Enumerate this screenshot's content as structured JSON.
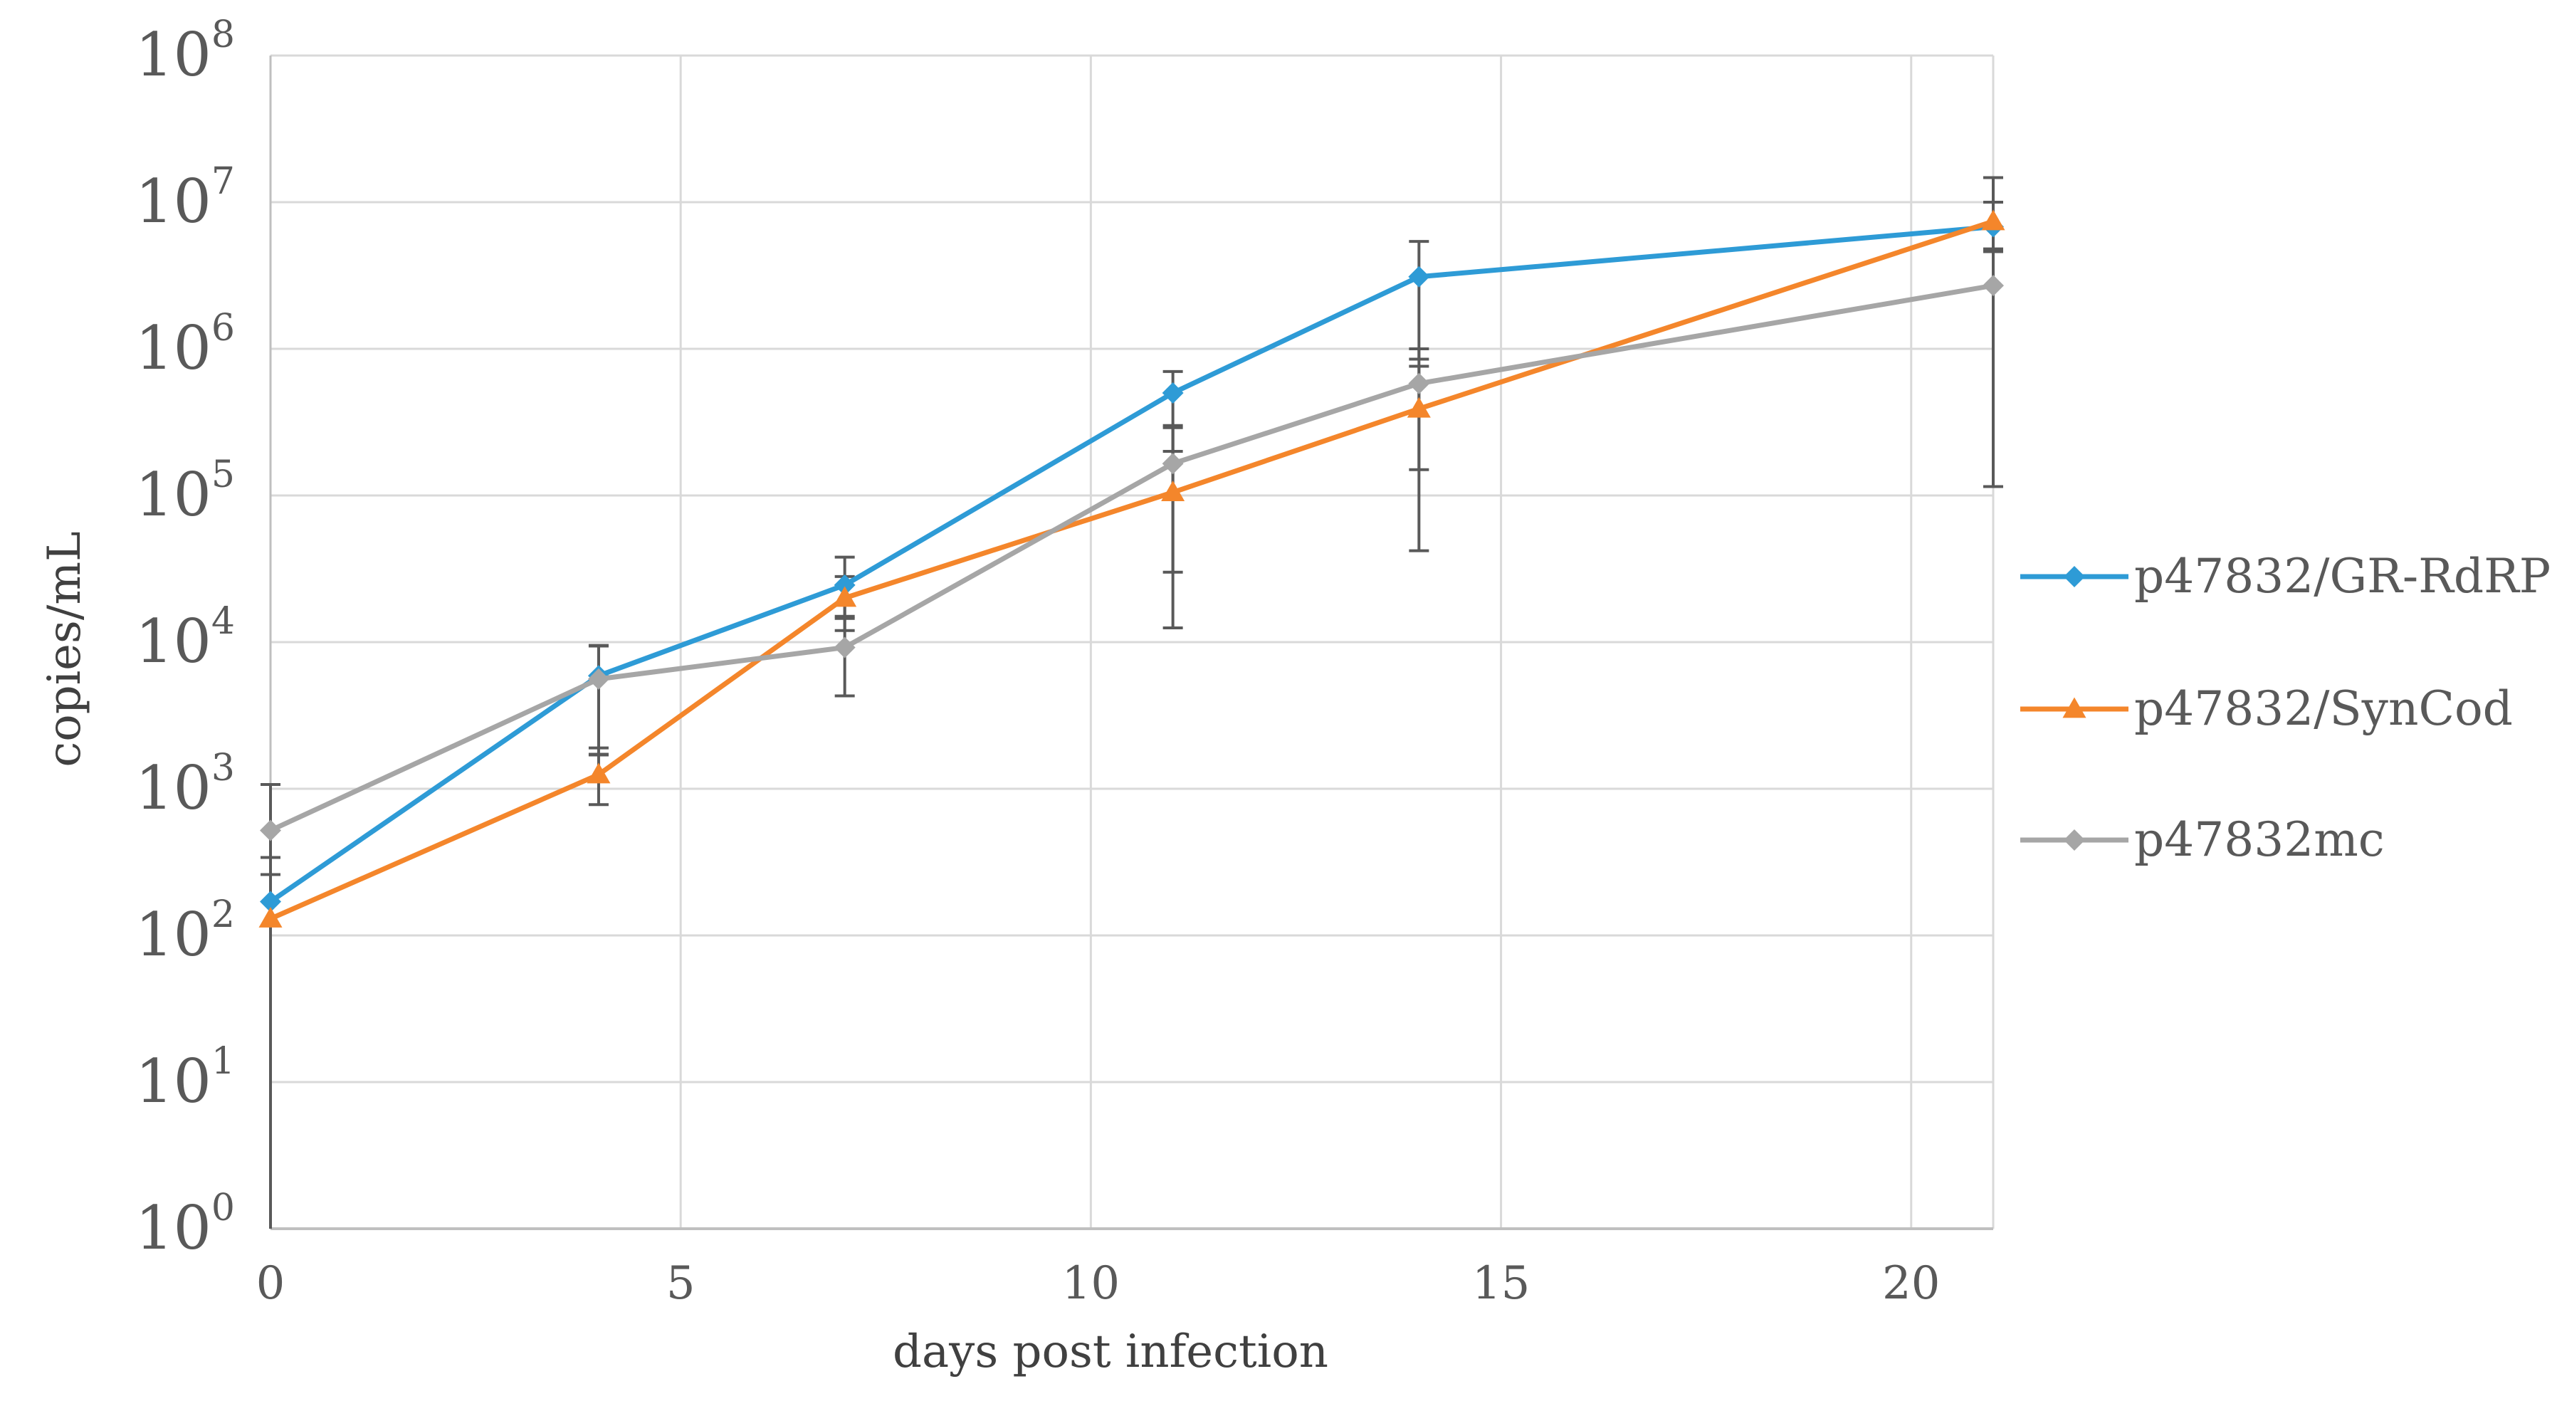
{
  "chart_data": {
    "type": "line",
    "title": "",
    "xlabel": "days post infection",
    "ylabel": "copies/mL",
    "yscale": "log10",
    "xlim": [
      0,
      21
    ],
    "ylim": [
      1,
      100000000
    ],
    "grid": true,
    "legend_position": "right",
    "x_ticks": [
      "0",
      "5",
      "10",
      "15",
      "20"
    ],
    "x_tick_values": [
      0,
      5,
      10,
      15,
      20
    ],
    "y_ticks": [
      {
        "base": "10",
        "exp": "0",
        "value": 1
      },
      {
        "base": "10",
        "exp": "1",
        "value": 10
      },
      {
        "base": "10",
        "exp": "2",
        "value": 100
      },
      {
        "base": "10",
        "exp": "3",
        "value": 1000
      },
      {
        "base": "10",
        "exp": "4",
        "value": 10000
      },
      {
        "base": "10",
        "exp": "5",
        "value": 100000
      },
      {
        "base": "10",
        "exp": "6",
        "value": 1000000
      },
      {
        "base": "10",
        "exp": "7",
        "value": 10000000
      },
      {
        "base": "10",
        "exp": "8",
        "value": 100000000
      }
    ],
    "x": [
      0,
      4,
      7,
      11,
      14,
      21
    ],
    "series": [
      {
        "name": "p47832/GR-RdRP",
        "color": "#2E9BD6",
        "marker": "diamond",
        "values": [
          170,
          5900,
          24500,
          500000,
          3100000,
          6800000
        ],
        "err_low": [
          0,
          1900,
          15000,
          200000,
          850000,
          4600000
        ],
        "err_high": [
          340,
          9500,
          38000,
          700000,
          5400000,
          10000000
        ]
      },
      {
        "name": "p47832/SynCod",
        "color": "#F4862B",
        "marker": "triangle",
        "values": [
          130,
          1250,
          20000,
          105000,
          390000,
          7400000
        ],
        "err_low": [
          0,
          780,
          12000,
          12500,
          42000,
          4800000
        ],
        "err_high": [
          260,
          1720,
          28000,
          300000,
          760000,
          10000000
        ]
      },
      {
        "name": "p47832mc",
        "color": "#A6A6A6",
        "marker": "diamond",
        "values": [
          520,
          5600,
          9200,
          165000,
          580000,
          2700000
        ],
        "err_low": [
          0,
          1700,
          4300,
          30000,
          150000,
          115000
        ],
        "err_high": [
          1070,
          9400,
          14500,
          290000,
          1000000,
          14700000
        ]
      }
    ]
  }
}
